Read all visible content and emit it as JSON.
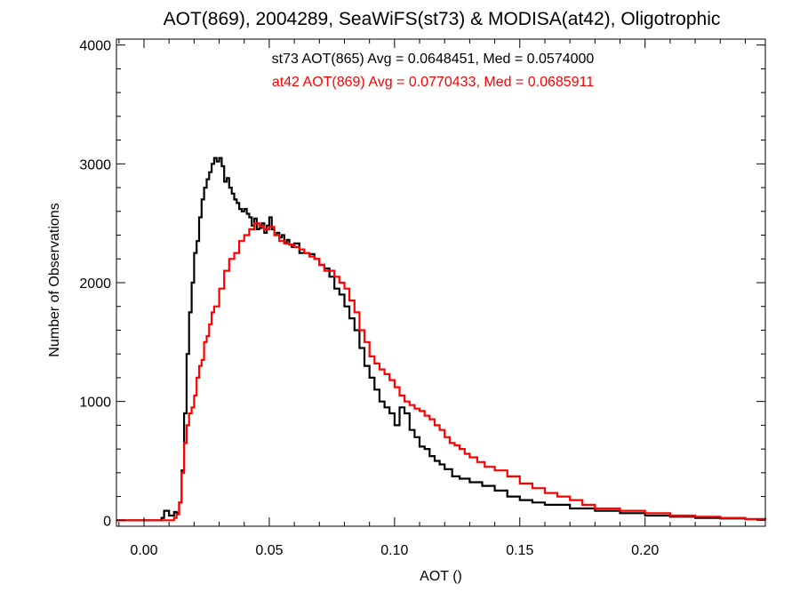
{
  "chart_data": {
    "type": "line",
    "title": "AOT(869), 2004289, SeaWiFS(st73) & MODISA(at42), Oligotrophic",
    "xlabel": "AOT ()",
    "ylabel": "Number of Observations",
    "xlim": [
      -0.011,
      0.248
    ],
    "ylim": [
      -50,
      4050
    ],
    "x_ticks": [
      0.0,
      0.05,
      0.1,
      0.15,
      0.2
    ],
    "x_tick_labels": [
      "0.00",
      "0.05",
      "0.10",
      "0.15",
      "0.20"
    ],
    "y_ticks": [
      0,
      1000,
      2000,
      3000,
      4000
    ],
    "y_tick_labels": [
      "0",
      "1000",
      "2000",
      "3000",
      "4000"
    ],
    "grid": false,
    "annotations": [
      {
        "text": "st73 AOT(865) Avg = 0.0648451, Med = 0.0574000",
        "color": "#000000"
      },
      {
        "text": "at42 AOT(869) Avg = 0.0770433, Med = 0.0685911",
        "color": "#ff0000"
      }
    ],
    "series": [
      {
        "color": "#000000",
        "x": [
          -0.011,
          0.0,
          0.005,
          0.007,
          0.008,
          0.01,
          0.012,
          0.013,
          0.014,
          0.015,
          0.016,
          0.017,
          0.018,
          0.019,
          0.02,
          0.021,
          0.022,
          0.023,
          0.024,
          0.025,
          0.026,
          0.027,
          0.028,
          0.029,
          0.03,
          0.031,
          0.032,
          0.033,
          0.034,
          0.035,
          0.036,
          0.037,
          0.038,
          0.039,
          0.04,
          0.041,
          0.042,
          0.043,
          0.044,
          0.045,
          0.046,
          0.047,
          0.048,
          0.049,
          0.05,
          0.051,
          0.052,
          0.053,
          0.054,
          0.055,
          0.056,
          0.057,
          0.058,
          0.059,
          0.06,
          0.062,
          0.064,
          0.066,
          0.068,
          0.07,
          0.072,
          0.074,
          0.076,
          0.078,
          0.08,
          0.082,
          0.084,
          0.086,
          0.088,
          0.09,
          0.092,
          0.094,
          0.096,
          0.098,
          0.1,
          0.102,
          0.104,
          0.106,
          0.108,
          0.11,
          0.112,
          0.114,
          0.116,
          0.118,
          0.12,
          0.123,
          0.126,
          0.13,
          0.135,
          0.14,
          0.145,
          0.15,
          0.155,
          0.16,
          0.17,
          0.18,
          0.19,
          0.2,
          0.21,
          0.22,
          0.23,
          0.24,
          0.248
        ],
        "values": [
          0,
          0,
          0,
          20,
          80,
          40,
          70,
          60,
          150,
          420,
          900,
          1400,
          1750,
          2000,
          2250,
          2350,
          2550,
          2700,
          2800,
          2870,
          2930,
          3000,
          3050,
          3020,
          3050,
          2980,
          2850,
          2880,
          2800,
          2750,
          2700,
          2670,
          2620,
          2600,
          2620,
          2580,
          2550,
          2480,
          2540,
          2450,
          2460,
          2500,
          2420,
          2480,
          2550,
          2450,
          2400,
          2420,
          2380,
          2400,
          2340,
          2360,
          2320,
          2300,
          2330,
          2250,
          2250,
          2240,
          2200,
          2150,
          2120,
          2050,
          1950,
          1900,
          1800,
          1700,
          1600,
          1450,
          1300,
          1200,
          1100,
          1000,
          950,
          900,
          800,
          950,
          900,
          760,
          700,
          620,
          600,
          540,
          500,
          470,
          430,
          370,
          350,
          320,
          290,
          250,
          200,
          170,
          150,
          130,
          100,
          80,
          60,
          40,
          30,
          20,
          15,
          10,
          5
        ]
      },
      {
        "color": "#ff0000",
        "x": [
          -0.011,
          0.0,
          0.01,
          0.012,
          0.013,
          0.014,
          0.015,
          0.016,
          0.017,
          0.018,
          0.019,
          0.02,
          0.021,
          0.022,
          0.023,
          0.024,
          0.025,
          0.026,
          0.027,
          0.028,
          0.03,
          0.032,
          0.034,
          0.036,
          0.038,
          0.04,
          0.042,
          0.044,
          0.046,
          0.048,
          0.05,
          0.052,
          0.054,
          0.056,
          0.058,
          0.06,
          0.062,
          0.064,
          0.066,
          0.068,
          0.07,
          0.072,
          0.074,
          0.076,
          0.078,
          0.08,
          0.082,
          0.084,
          0.086,
          0.088,
          0.09,
          0.092,
          0.094,
          0.096,
          0.098,
          0.1,
          0.102,
          0.104,
          0.106,
          0.108,
          0.11,
          0.112,
          0.114,
          0.116,
          0.118,
          0.12,
          0.122,
          0.124,
          0.126,
          0.128,
          0.13,
          0.133,
          0.136,
          0.14,
          0.145,
          0.15,
          0.155,
          0.16,
          0.165,
          0.17,
          0.175,
          0.18,
          0.19,
          0.2,
          0.21,
          0.22,
          0.23,
          0.24,
          0.248
        ],
        "values": [
          0,
          0,
          0,
          20,
          50,
          150,
          400,
          650,
          800,
          900,
          950,
          1050,
          1200,
          1300,
          1350,
          1500,
          1550,
          1650,
          1750,
          1800,
          1950,
          2100,
          2200,
          2250,
          2350,
          2400,
          2450,
          2500,
          2480,
          2450,
          2470,
          2400,
          2350,
          2330,
          2320,
          2300,
          2280,
          2250,
          2220,
          2200,
          2150,
          2100,
          2100,
          2050,
          2000,
          1950,
          1850,
          1750,
          1600,
          1500,
          1380,
          1320,
          1270,
          1230,
          1180,
          1120,
          1050,
          1000,
          970,
          940,
          920,
          880,
          850,
          800,
          760,
          700,
          650,
          630,
          600,
          560,
          530,
          490,
          450,
          420,
          370,
          310,
          270,
          230,
          200,
          170,
          130,
          100,
          80,
          60,
          40,
          30,
          20,
          10,
          5
        ]
      }
    ]
  }
}
